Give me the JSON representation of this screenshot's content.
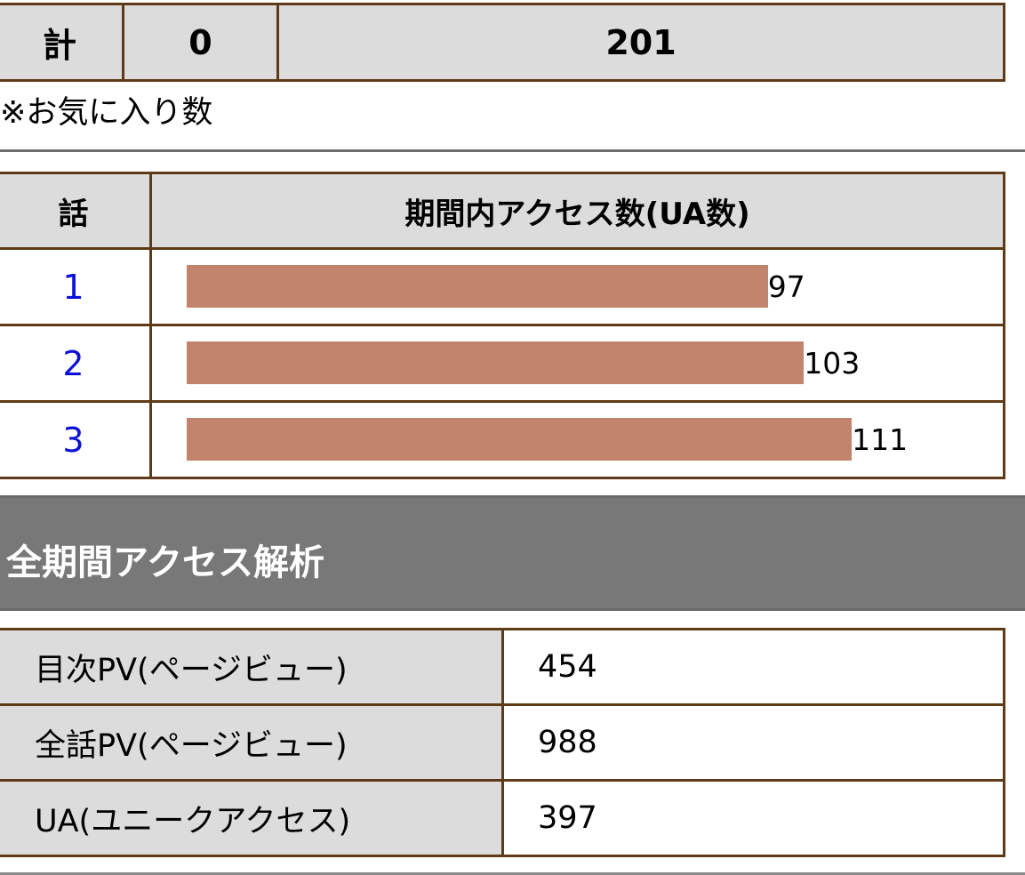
{
  "favorites_table": {
    "total_row": {
      "label": "計",
      "col2": "0",
      "col3": "201"
    },
    "note": "※お気に入り数"
  },
  "period_access": {
    "headers": {
      "episode": "話",
      "access": "期間内アクセス数(UA数)"
    },
    "rows": [
      {
        "episode": "1",
        "ua": 97,
        "ua_label": "97"
      },
      {
        "episode": "2",
        "ua": 103,
        "ua_label": "103"
      },
      {
        "episode": "3",
        "ua": 111,
        "ua_label": "111"
      }
    ],
    "bar_color": "#c2846c"
  },
  "all_period": {
    "title": "全期間アクセス解析",
    "rows": [
      {
        "label": "目次PV(ページビュー)",
        "value": "454"
      },
      {
        "label": "全話PV(ページビュー)",
        "value": "988"
      },
      {
        "label": "UA(ユニークアクセス)",
        "value": "397"
      }
    ]
  }
}
